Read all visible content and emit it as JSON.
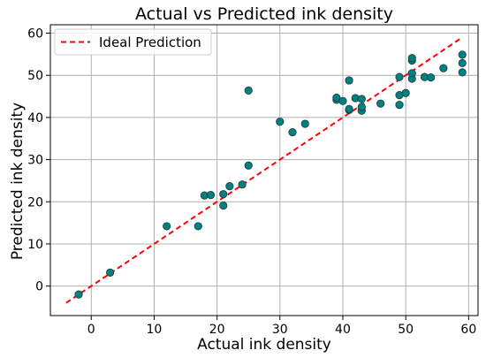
{
  "chart_data": {
    "type": "scatter",
    "title": "Actual vs Predicted ink density",
    "xlabel": "Actual ink density",
    "ylabel": "Predicted ink density",
    "xlim": [
      -6.5,
      61.5
    ],
    "ylim": [
      -7,
      62
    ],
    "xticks": [
      0,
      10,
      20,
      30,
      40,
      50,
      60
    ],
    "yticks": [
      0,
      10,
      20,
      30,
      40,
      50,
      60
    ],
    "grid": true,
    "legend_position": "top-left",
    "colors": {
      "points": "#008080",
      "ideal_line": "#ff0000"
    },
    "series": [
      {
        "kind": "points",
        "points": [
          [
            -2,
            -2
          ],
          [
            3,
            3.2
          ],
          [
            12,
            14.2
          ],
          [
            17,
            14.2
          ],
          [
            18,
            21.5
          ],
          [
            19,
            21.6
          ],
          [
            21,
            19.1
          ],
          [
            21,
            21.8
          ],
          [
            22,
            23.7
          ],
          [
            24,
            24.1
          ],
          [
            25,
            28.6
          ],
          [
            25,
            46.4
          ],
          [
            30,
            39.0
          ],
          [
            32,
            36.5
          ],
          [
            34,
            38.5
          ],
          [
            39,
            44.2
          ],
          [
            39,
            44.7
          ],
          [
            40,
            43.9
          ],
          [
            41,
            41.8
          ],
          [
            41,
            42.0
          ],
          [
            41,
            48.8
          ],
          [
            42,
            44.6
          ],
          [
            43,
            41.6
          ],
          [
            43,
            42.5
          ],
          [
            43,
            44.4
          ],
          [
            46,
            43.3
          ],
          [
            49,
            43.0
          ],
          [
            49,
            45.3
          ],
          [
            49,
            49.6
          ],
          [
            50,
            45.8
          ],
          [
            51,
            49.2
          ],
          [
            51,
            50.5
          ],
          [
            51,
            53.5
          ],
          [
            51,
            54.1
          ],
          [
            53,
            49.6
          ],
          [
            54,
            49.5
          ],
          [
            56,
            51.7
          ],
          [
            59,
            50.7
          ],
          [
            59,
            52.9
          ],
          [
            59,
            54.9
          ]
        ]
      },
      {
        "name": "Ideal Prediction",
        "kind": "line",
        "dash": "dashed",
        "points": [
          [
            -4,
            -4
          ],
          [
            59,
            59
          ]
        ]
      }
    ]
  }
}
